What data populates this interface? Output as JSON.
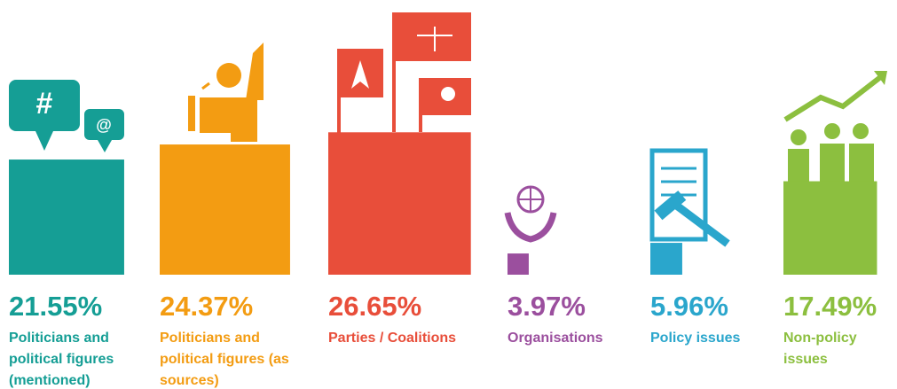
{
  "chart_data": {
    "type": "bar",
    "categories": [
      "Politicians and political figures (mentioned)",
      "Politicians and political figures (as sources)",
      "Parties / Coalitions",
      "Organisations",
      "Policy issues",
      "Non-policy issues"
    ],
    "values": [
      21.55,
      24.37,
      26.65,
      3.97,
      5.96,
      17.49
    ],
    "value_labels": [
      "21.55%",
      "24.37%",
      "26.65%",
      "3.97%",
      "5.96%",
      "17.49%"
    ],
    "colors": [
      "#159e95",
      "#f39c12",
      "#e84e3a",
      "#9b4f9e",
      "#2aa6cc",
      "#8cbf3f"
    ]
  }
}
